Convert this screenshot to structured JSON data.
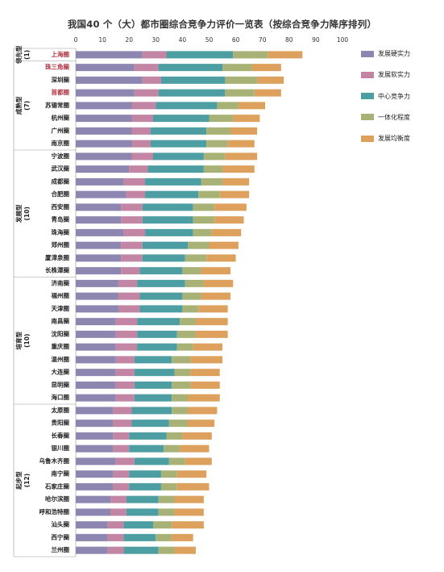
{
  "title": "我国40 个（大）都市圈综合竞争力评价一览表（按综合竞争力降序排列）",
  "colors": {
    "发展硬实力": "#8c86b0",
    "发展软实力": "#c285a4",
    "中心竞争力": "#4c9ea2",
    "一体化程度": "#a9b276",
    "发展均衡度": "#dda15d"
  },
  "legend": [
    "发展硬实力",
    "发展软实力",
    "中心竞争力",
    "一体化程度",
    "发展均衡度"
  ],
  "chart_data": {
    "type": "bar",
    "orientation": "horizontal",
    "stacked": true,
    "title": "我国40 个（大）都市圈综合竞争力评价一览表（按综合竞争力降序排列）",
    "xlim": [
      0,
      100
    ],
    "xticks": [
      0,
      10,
      20,
      30,
      40,
      50,
      60,
      70,
      80,
      90,
      100
    ],
    "grid": false,
    "legend_position": "right",
    "groups": [
      {
        "label": "领先型",
        "count_label": "(1)",
        "size": 1
      },
      {
        "label": "成熟型",
        "count_label": "(7)",
        "size": 7
      },
      {
        "label": "发展型",
        "count_label": "(10)",
        "size": 10
      },
      {
        "label": "培育型",
        "count_label": "(10)",
        "size": 10
      },
      {
        "label": "起步型",
        "count_label": "(12)",
        "size": 12
      }
    ],
    "highlighted": [
      "上海圈",
      "珠三角圈",
      "首都圈"
    ],
    "categories": [
      "上海圈",
      "珠三角圈",
      "深圳圈",
      "首都圈",
      "苏锡常圈",
      "杭州圈",
      "广州圈",
      "南京圈",
      "宁波圈",
      "武汉圈",
      "成都圈",
      "合肥圈",
      "西安圈",
      "青岛圈",
      "珠海圈",
      "郑州圈",
      "厦漳泉圈",
      "长株潭圈",
      "济南圈",
      "福州圈",
      "天津圈",
      "南昌圈",
      "沈阳圈",
      "重庆圈",
      "温州圈",
      "大连圈",
      "昆明圈",
      "海口圈",
      "太原圈",
      "贵阳圈",
      "长春圈",
      "银川圈",
      "乌鲁木齐圈",
      "南宁圈",
      "石家庄圈",
      "哈尔滨圈",
      "呼和浩特圈",
      "汕头圈",
      "西宁圈",
      "兰州圈"
    ],
    "series": [
      {
        "name": "发展硬实力",
        "values": [
          25,
          22,
          25,
          22,
          21,
          21,
          21,
          21,
          21,
          20,
          18,
          19,
          17,
          17,
          18,
          17,
          17,
          17,
          16,
          16,
          16,
          15,
          15,
          15,
          15,
          15,
          15,
          15,
          14,
          14,
          14,
          14,
          15,
          14,
          14,
          13,
          13,
          12,
          12,
          12
        ]
      },
      {
        "name": "发展软实力",
        "values": [
          9,
          9,
          7,
          9,
          9,
          8,
          7,
          7,
          8,
          7,
          8,
          7,
          8,
          8,
          8,
          8,
          8,
          7,
          7,
          8,
          8,
          8,
          8,
          8,
          7,
          7,
          7,
          7,
          7,
          7,
          6,
          6,
          7,
          6,
          6,
          6,
          6,
          6,
          6,
          6
        ]
      },
      {
        "name": "中心竞争力",
        "values": [
          25,
          24,
          24,
          25,
          23,
          21,
          21,
          21,
          19,
          21,
          21,
          20,
          19,
          19,
          18,
          17,
          16,
          16,
          18,
          16,
          16,
          16,
          15,
          15,
          14,
          15,
          14,
          14,
          15,
          14,
          14,
          13,
          13,
          12,
          12,
          12,
          12,
          11,
          12,
          13
        ]
      },
      {
        "name": "一体化程度",
        "values": [
          13,
          11,
          12,
          11,
          8,
          9,
          9,
          8,
          8,
          7,
          8,
          8,
          8,
          8,
          7,
          8,
          8,
          7,
          7,
          7,
          6,
          6,
          7,
          6,
          7,
          6,
          7,
          6,
          6,
          7,
          6,
          6,
          6,
          6,
          6,
          6,
          6,
          7,
          6,
          6
        ]
      },
      {
        "name": "发展均衡度",
        "values": [
          13,
          11,
          10,
          10,
          10,
          10,
          10,
          10,
          12,
          12,
          10,
          11,
          12,
          11,
          11,
          11,
          11,
          11,
          11,
          11,
          11,
          12,
          12,
          11,
          12,
          11,
          11,
          12,
          11,
          10,
          11,
          11,
          10,
          11,
          12,
          11,
          11,
          12,
          8,
          8
        ]
      }
    ]
  }
}
